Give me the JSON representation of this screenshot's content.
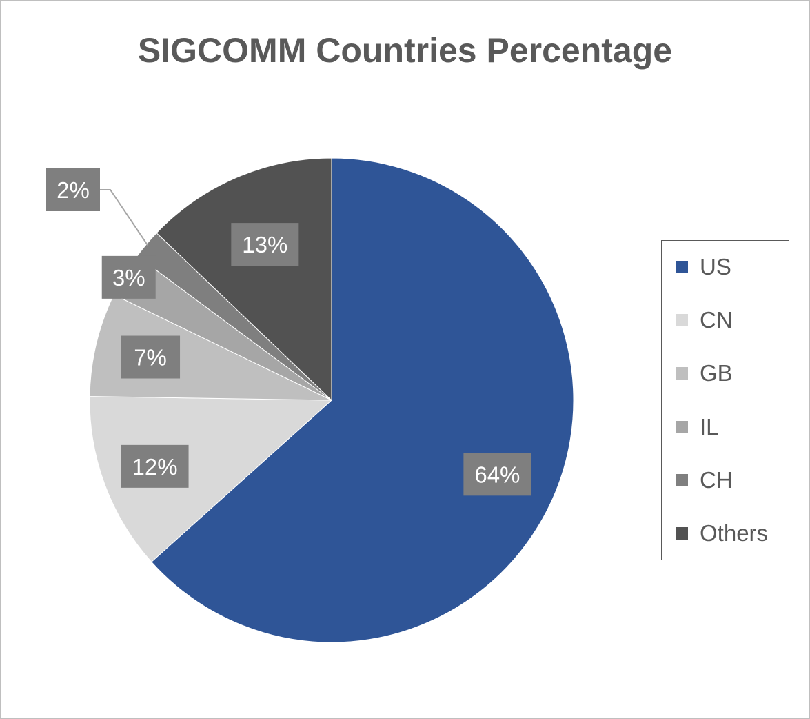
{
  "chart_data": {
    "type": "pie",
    "title": "SIGCOMM Countries Percentage",
    "categories": [
      "US",
      "CN",
      "GB",
      "IL",
      "CH",
      "Others"
    ],
    "values": [
      64,
      12,
      7,
      3,
      2,
      13
    ],
    "labels": [
      "64%",
      "12%",
      "7%",
      "3%",
      "2%",
      "13%"
    ],
    "colors": [
      "#2f5597",
      "#d9d9d9",
      "#bfbfbf",
      "#a6a6a6",
      "#7f7f7f",
      "#525252"
    ],
    "start_angle_deg": 0,
    "direction": "clockwise",
    "legend_position": "right"
  }
}
